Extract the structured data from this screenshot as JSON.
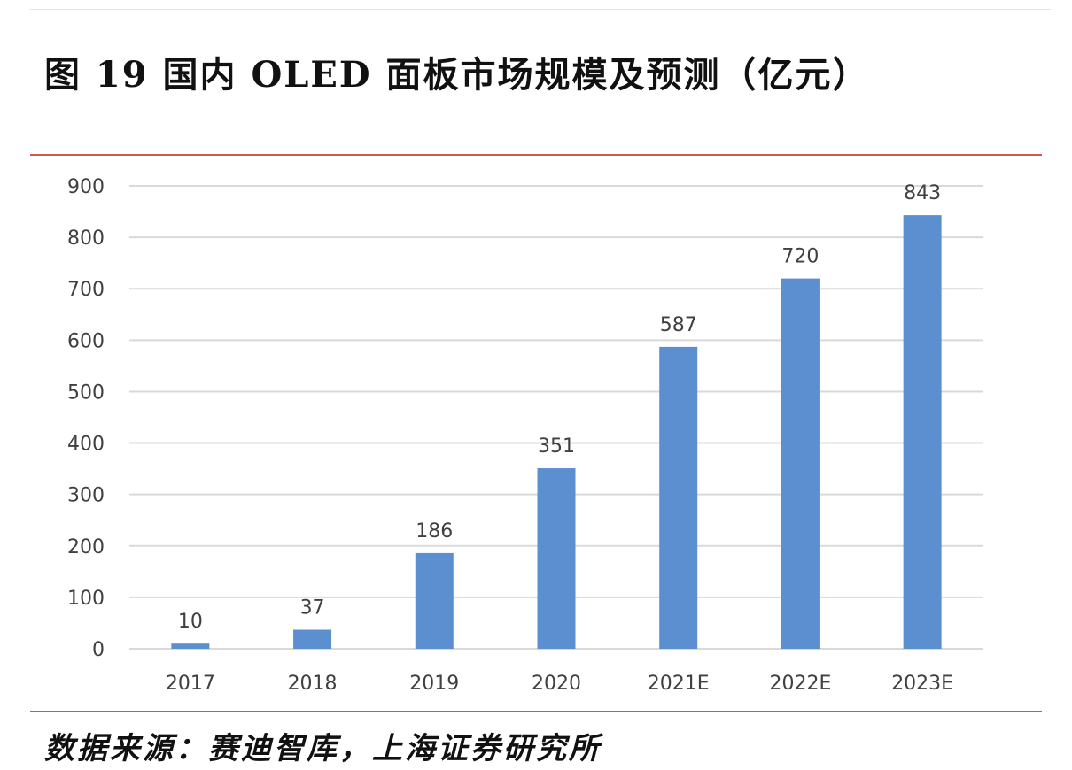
{
  "figure": {
    "title": "图 19 国内 OLED 面板市场规模及预测（亿元）",
    "source": "数据来源：赛迪智库，上海证券研究所"
  },
  "chart_data": {
    "type": "bar",
    "categories": [
      "2017",
      "2018",
      "2019",
      "2020",
      "2021E",
      "2022E",
      "2023E"
    ],
    "values": [
      10,
      37,
      186,
      351,
      587,
      720,
      843
    ],
    "ylim": [
      0,
      900
    ],
    "yticks": [
      0,
      100,
      200,
      300,
      400,
      500,
      600,
      700,
      800,
      900
    ],
    "grid": true,
    "legend": "none",
    "bar_color": "#5b8fd0",
    "grid_color": "#d9d9d9",
    "label_color": "#404040"
  }
}
